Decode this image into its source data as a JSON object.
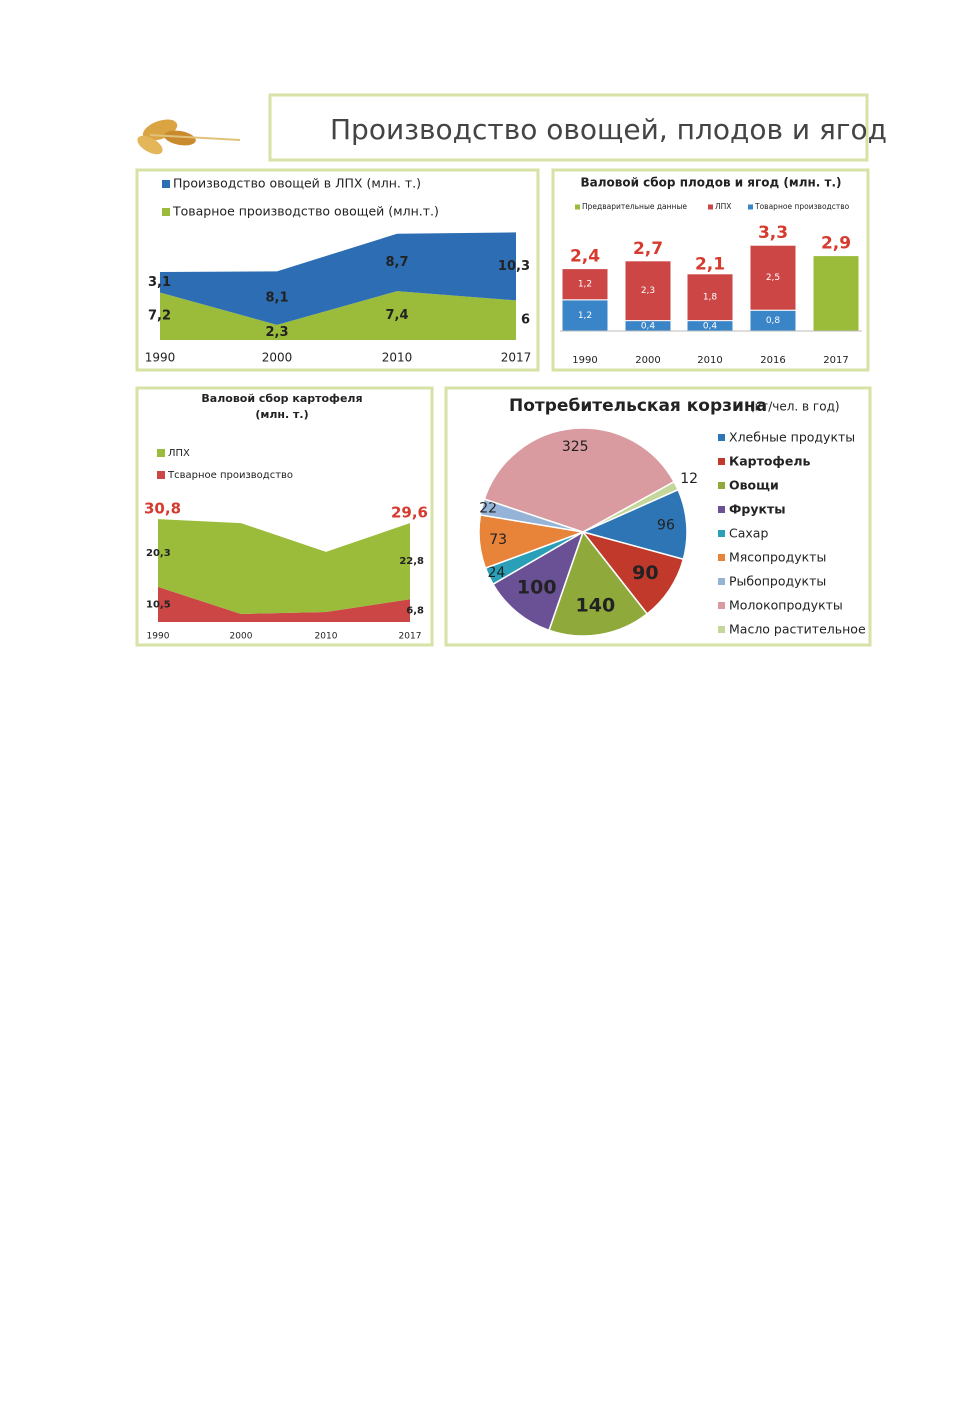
{
  "title": "Производство овощей, плодов и ягод",
  "chart_data": [
    {
      "type": "area",
      "categories": [
        "1990",
        "2000",
        "2010",
        "2017"
      ],
      "series": [
        {
          "name": "Производство овощей в ЛПХ (млн. т.)",
          "color": "#2c6db3",
          "values": [
            3.1,
            8.1,
            8.7,
            10.3
          ],
          "value_labels": [
            "3,1",
            "8,1",
            "8,7",
            "10,3"
          ]
        },
        {
          "name": "Товарное производство овощей (млн.т.)",
          "color": "#9bbb3a",
          "values": [
            7.2,
            2.3,
            7.4,
            6
          ],
          "value_labels": [
            "7,2",
            "2,3",
            "7,4",
            "6"
          ]
        }
      ]
    },
    {
      "type": "bar",
      "title": "Валовой сбор плодов и ягод (млн. т.)",
      "categories": [
        "1990",
        "2000",
        "2010",
        "2016",
        "2017"
      ],
      "series": [
        {
          "name": "Предварительные данные",
          "color": "#9bbb3a",
          "values": [
            null,
            null,
            null,
            null,
            2.9
          ],
          "value_labels": [
            null,
            null,
            null,
            null,
            null
          ]
        },
        {
          "name": "ЛПХ",
          "color": "#cc4646",
          "values": [
            1.2,
            2.3,
            1.8,
            2.5,
            null
          ],
          "value_labels": [
            "1,2",
            "2,3",
            "1,8",
            "2,5",
            null
          ]
        },
        {
          "name": "Товарное производство",
          "color": "#3a84c8",
          "values": [
            1.2,
            0.4,
            0.4,
            0.8,
            null
          ],
          "value_labels": [
            "1,2",
            "0,4",
            "0,4",
            "0,8",
            null
          ]
        }
      ],
      "totals": [
        2.4,
        2.7,
        2.1,
        3.3,
        2.9
      ],
      "total_labels": [
        "2,4",
        "2,7",
        "2,1",
        "3,3",
        "2,9"
      ]
    },
    {
      "type": "area",
      "title": "Валовой сбор картофеля",
      "subtitle": "(млн. т.)",
      "categories": [
        "1990",
        "2000",
        "2010",
        "2017"
      ],
      "series": [
        {
          "name": "ЛПХ",
          "color": "#9bbb3a",
          "values": [
            20.3,
            27.2,
            18.0,
            22.8
          ],
          "value_labels": [
            "20,3",
            null,
            null,
            "22,8"
          ]
        },
        {
          "name": "Тсварное производство",
          "color": "#cc4646",
          "values": [
            10.5,
            2.4,
            3.0,
            6.8
          ],
          "value_labels": [
            "10,5",
            null,
            null,
            "6,8"
          ]
        }
      ],
      "totals": [
        30.8,
        null,
        null,
        29.6
      ],
      "total_labels": [
        "30,8",
        null,
        null,
        "29,6"
      ]
    },
    {
      "type": "pie",
      "title": "Потребительская корзина",
      "subtitle": "(кг/чел. в год)",
      "categories": [
        "Хлебные продукты",
        "Картофель",
        "Овощи",
        "Фрукты",
        "Сахар",
        "Мясопродукты",
        "Рыбопродукты",
        "Молокопродукты",
        "Масло растительное"
      ],
      "values": [
        96,
        90,
        140,
        100,
        24,
        73,
        22,
        325,
        12
      ],
      "colors": [
        "#2e75b6",
        "#c0392b",
        "#8faa3b",
        "#6a5196",
        "#2aa0b8",
        "#e8833a",
        "#95b3d7",
        "#d99ba0",
        "#c4d79b"
      ]
    }
  ]
}
